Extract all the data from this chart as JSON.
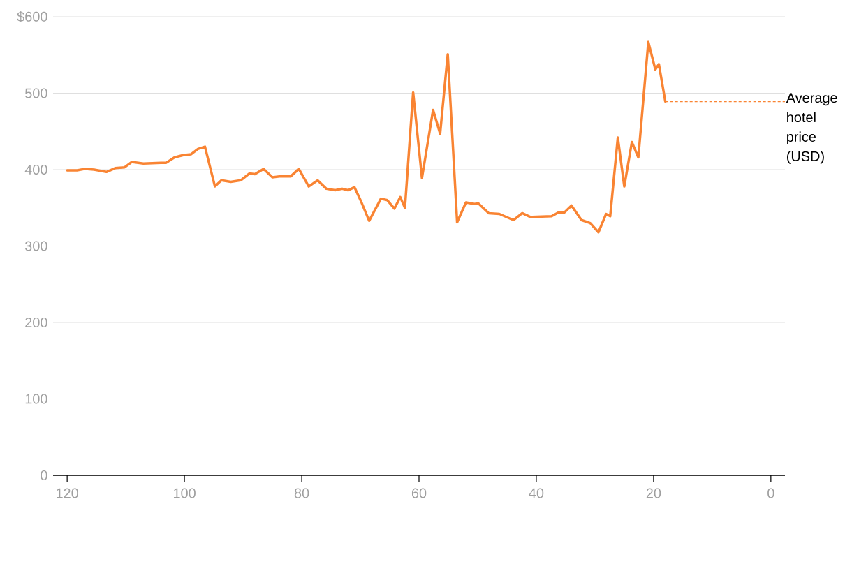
{
  "chart_data": {
    "type": "line",
    "x": [
      120,
      118.3,
      116.9,
      115.4,
      113.3,
      111.8,
      110.2,
      109.0,
      107.0,
      104.0,
      103.1,
      101.7,
      100.2,
      98.9,
      97.7,
      96.5,
      94.8,
      93.7,
      92.1,
      90.4,
      88.9,
      88.0,
      86.5,
      85.0,
      83.8,
      81.9,
      80.5,
      78.8,
      77.3,
      75.8,
      74.3,
      73.1,
      72.1,
      71.0,
      69.8,
      68.5,
      66.5,
      65.4,
      64.2,
      63.2,
      62.4,
      61.0,
      59.5,
      57.6,
      56.4,
      55.1,
      53.5,
      52.0,
      50.5,
      49.9,
      48.1,
      46.3,
      43.9,
      42.4,
      41.0,
      37.4,
      36.2,
      35.2,
      34.0,
      32.3,
      30.8,
      29.4,
      28.1,
      27.4,
      26.1,
      25.0,
      23.7,
      22.6,
      20.9,
      19.7,
      19.1,
      18.0
    ],
    "series": [
      {
        "name": "Average hotel price (USD)",
        "color": "#f98433",
        "values": [
          399,
          399,
          401,
          400,
          397,
          402,
          403,
          410,
          408,
          409,
          409,
          416,
          419,
          420,
          427,
          430,
          378,
          386,
          384,
          386,
          395,
          394,
          401,
          390,
          391,
          391,
          401,
          378,
          386,
          375,
          373,
          375,
          373,
          377,
          357,
          333,
          362,
          360,
          349,
          364,
          350,
          501,
          389,
          478,
          447,
          551,
          331,
          357,
          355,
          356,
          343,
          342,
          334,
          343,
          338,
          339,
          344,
          344,
          353,
          334,
          330,
          318,
          342,
          339,
          442,
          378,
          436,
          416,
          567,
          531,
          538,
          489
        ]
      }
    ],
    "xlim": [
      122.4,
      -2.4
    ],
    "xticks": [
      120,
      100,
      80,
      60,
      40,
      20,
      0
    ],
    "ylim": [
      0,
      600
    ],
    "yticks": [
      0,
      100,
      200,
      300,
      400,
      500,
      {
        "value": 600,
        "label": "$600"
      }
    ],
    "grid": "y"
  }
}
